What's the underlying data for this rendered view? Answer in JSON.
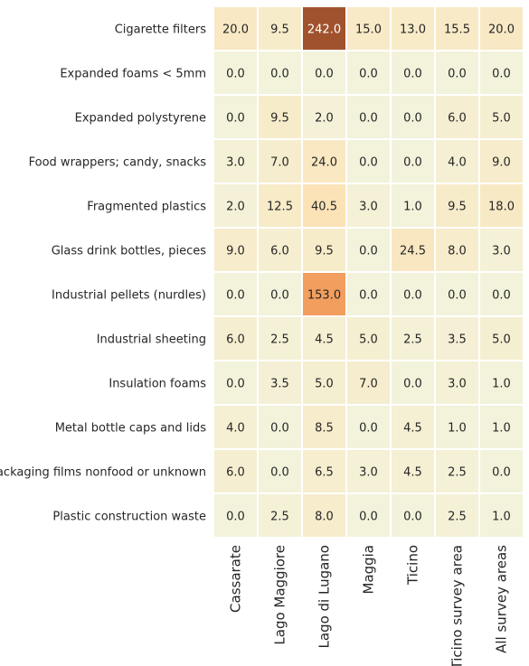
{
  "chart_data": {
    "type": "heatmap",
    "title": "",
    "xlabel": "",
    "ylabel": "",
    "rows": [
      "Cigarette filters",
      "Expanded foams < 5mm",
      "Expanded polystyrene",
      "Food wrappers; candy, snacks",
      "Fragmented plastics",
      "Glass drink bottles, pieces",
      "Industrial pellets (nurdles)",
      "Industrial sheeting",
      "Insulation foams",
      "Metal bottle caps and lids",
      "Packaging films nonfood or unknown",
      "Plastic construction waste"
    ],
    "columns": [
      "Cassarate",
      "Lago Maggiore",
      "Lago di Lugano",
      "Maggia",
      "Ticino",
      "Ticino survey area",
      "All survey areas"
    ],
    "values": [
      [
        20.0,
        9.5,
        242.0,
        15.0,
        13.0,
        15.5,
        20.0
      ],
      [
        0.0,
        0.0,
        0.0,
        0.0,
        0.0,
        0.0,
        0.0
      ],
      [
        0.0,
        9.5,
        2.0,
        0.0,
        0.0,
        6.0,
        5.0
      ],
      [
        3.0,
        7.0,
        24.0,
        0.0,
        0.0,
        4.0,
        9.0
      ],
      [
        2.0,
        12.5,
        40.5,
        3.0,
        1.0,
        9.5,
        18.0
      ],
      [
        9.0,
        6.0,
        9.5,
        0.0,
        24.5,
        8.0,
        3.0
      ],
      [
        0.0,
        0.0,
        153.0,
        0.0,
        0.0,
        0.0,
        0.0
      ],
      [
        6.0,
        2.5,
        4.5,
        5.0,
        2.5,
        3.5,
        5.0
      ],
      [
        0.0,
        3.5,
        5.0,
        7.0,
        0.0,
        3.0,
        1.0
      ],
      [
        4.0,
        0.0,
        8.5,
        0.0,
        4.5,
        1.0,
        1.0
      ],
      [
        6.0,
        0.0,
        6.5,
        3.0,
        4.5,
        2.5,
        0.0
      ],
      [
        0.0,
        2.5,
        8.0,
        0.0,
        0.0,
        2.5,
        1.0
      ]
    ],
    "value_format": "one_decimal",
    "vmin": 0,
    "vmax": 242,
    "colormap": [
      "#f3f3dc",
      "#f7eccb",
      "#fbe2b5",
      "#f5a160",
      "#a0522d"
    ],
    "grid": false,
    "legend": "none"
  }
}
